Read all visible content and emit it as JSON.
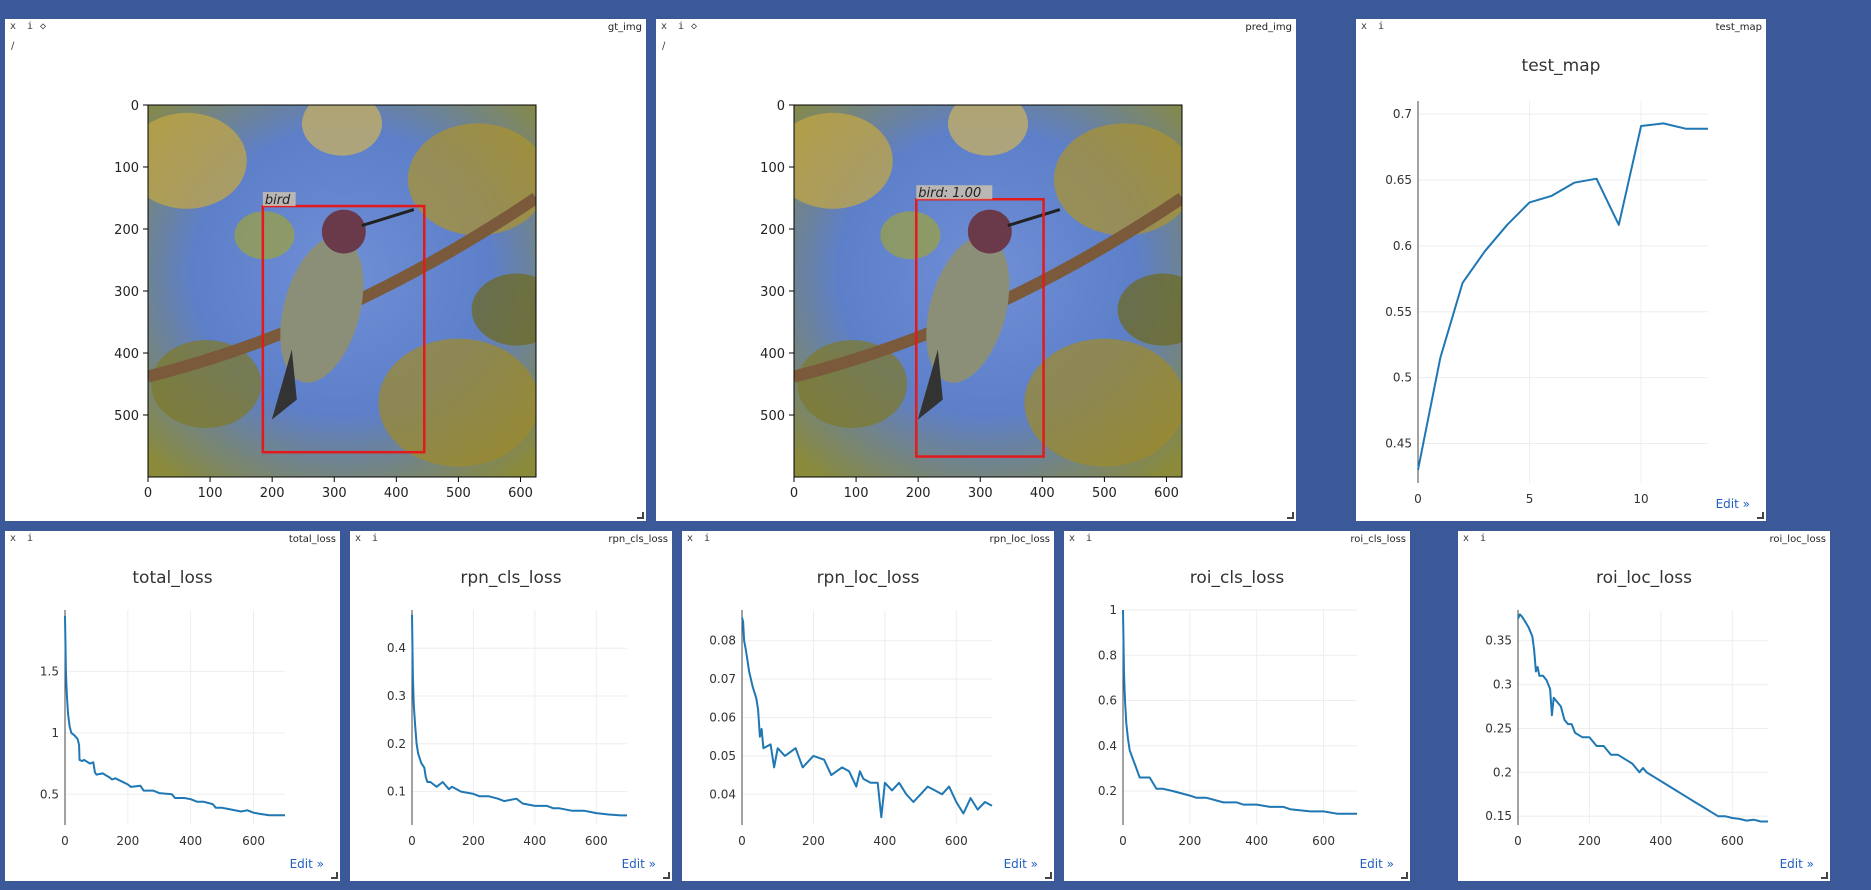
{
  "windows": {
    "gt_img": {
      "title": "gt_img",
      "close": "x",
      "info": "i",
      "extra": "◇",
      "pencil": "∕"
    },
    "pred_img": {
      "title": "pred_img",
      "close": "x",
      "info": "i",
      "extra": "◇",
      "pencil": "∕"
    },
    "test_map": {
      "title": "test_map",
      "close": "x",
      "info": "i",
      "edit": "Edit »"
    },
    "total_loss": {
      "title": "total_loss",
      "close": "x",
      "info": "i",
      "edit": "Edit »"
    },
    "rpn_cls_loss": {
      "title": "rpn_cls_loss",
      "close": "x",
      "info": "i",
      "edit": "Edit »"
    },
    "rpn_loc_loss": {
      "title": "rpn_loc_loss",
      "close": "x",
      "info": "i",
      "edit": "Edit »"
    },
    "roi_cls_loss": {
      "title": "roi_cls_loss",
      "close": "x",
      "info": "i",
      "edit": "Edit »"
    },
    "roi_loc_loss": {
      "title": "roi_loc_loss",
      "close": "x",
      "info": "i",
      "edit": "Edit »"
    }
  },
  "images": {
    "gt_img": {
      "xticks": [
        0,
        100,
        200,
        300,
        400,
        500,
        600
      ],
      "yticks": [
        0,
        100,
        200,
        300,
        400,
        500
      ],
      "xlim": [
        0,
        625
      ],
      "ylim": [
        0,
        600
      ],
      "box": {
        "x1": 185,
        "y1": 163,
        "x2": 445,
        "y2": 560,
        "label": "bird",
        "color": "#e31a1c"
      }
    },
    "pred_img": {
      "xticks": [
        0,
        100,
        200,
        300,
        400,
        500,
        600
      ],
      "yticks": [
        0,
        100,
        200,
        300,
        400,
        500
      ],
      "xlim": [
        0,
        625
      ],
      "ylim": [
        0,
        600
      ],
      "box": {
        "x1": 197,
        "y1": 152,
        "x2": 402,
        "y2": 567,
        "label": "bird: 1.00",
        "color": "#e31a1c"
      }
    }
  },
  "chart_data": [
    {
      "id": "test_map",
      "type": "line",
      "title": "test_map",
      "x": [
        0,
        1,
        2,
        3,
        4,
        5,
        6,
        7,
        8,
        9,
        10,
        11,
        12,
        13
      ],
      "values": [
        0.43,
        0.515,
        0.572,
        0.596,
        0.616,
        0.633,
        0.638,
        0.648,
        0.651,
        0.616,
        0.691,
        0.693,
        0.689,
        0.689
      ],
      "xlim": [
        0,
        13
      ],
      "ylim": [
        0.42,
        0.71
      ],
      "xticks": [
        0,
        5,
        10
      ],
      "yticks": [
        0.45,
        0.5,
        0.55,
        0.6,
        0.65,
        0.7
      ],
      "color": "#1f77b4"
    },
    {
      "id": "total_loss",
      "type": "line",
      "title": "total_loss",
      "x": [
        0,
        3,
        6,
        10,
        15,
        20,
        30,
        40,
        45,
        46,
        55,
        60,
        80,
        90,
        95,
        100,
        120,
        140,
        150,
        160,
        200,
        210,
        240,
        250,
        280,
        300,
        340,
        350,
        380,
        400,
        420,
        440,
        470,
        480,
        500,
        520,
        560,
        580,
        600,
        620,
        650,
        680,
        700
      ],
      "values": [
        1.95,
        1.5,
        1.3,
        1.15,
        1.05,
        1.0,
        0.98,
        0.95,
        0.9,
        0.78,
        0.77,
        0.78,
        0.75,
        0.76,
        0.68,
        0.66,
        0.67,
        0.64,
        0.62,
        0.63,
        0.58,
        0.56,
        0.57,
        0.53,
        0.53,
        0.51,
        0.5,
        0.47,
        0.47,
        0.46,
        0.44,
        0.44,
        0.42,
        0.39,
        0.39,
        0.38,
        0.36,
        0.37,
        0.35,
        0.34,
        0.33,
        0.33,
        0.33
      ],
      "xlim": [
        0,
        700
      ],
      "ylim": [
        0.25,
        2.0
      ],
      "xticks": [
        0,
        200,
        400,
        600
      ],
      "yticks": [
        0.5,
        1,
        1.5
      ],
      "color": "#1f77b4"
    },
    {
      "id": "rpn_cls_loss",
      "type": "line",
      "title": "rpn_cls_loss",
      "x": [
        0,
        3,
        6,
        10,
        15,
        20,
        30,
        40,
        45,
        50,
        60,
        80,
        100,
        120,
        130,
        160,
        200,
        220,
        250,
        280,
        300,
        340,
        360,
        400,
        440,
        460,
        480,
        520,
        560,
        600,
        640,
        680,
        700
      ],
      "values": [
        0.47,
        0.34,
        0.28,
        0.24,
        0.2,
        0.18,
        0.16,
        0.15,
        0.13,
        0.12,
        0.12,
        0.11,
        0.12,
        0.105,
        0.11,
        0.1,
        0.095,
        0.09,
        0.09,
        0.085,
        0.08,
        0.085,
        0.075,
        0.07,
        0.07,
        0.065,
        0.065,
        0.06,
        0.06,
        0.055,
        0.052,
        0.05,
        0.05
      ],
      "xlim": [
        0,
        700
      ],
      "ylim": [
        0.03,
        0.48
      ],
      "xticks": [
        0,
        200,
        400,
        600
      ],
      "yticks": [
        0.1,
        0.2,
        0.3,
        0.4
      ],
      "color": "#1f77b4"
    },
    {
      "id": "rpn_loc_loss",
      "type": "line",
      "title": "rpn_loc_loss",
      "x": [
        0,
        3,
        6,
        10,
        15,
        20,
        30,
        40,
        45,
        50,
        55,
        60,
        80,
        90,
        100,
        120,
        150,
        170,
        200,
        230,
        250,
        280,
        300,
        320,
        330,
        340,
        360,
        380,
        390,
        400,
        420,
        440,
        460,
        480,
        500,
        520,
        540,
        560,
        580,
        600,
        620,
        640,
        660,
        680,
        700
      ],
      "values": [
        0.086,
        0.085,
        0.08,
        0.078,
        0.075,
        0.072,
        0.068,
        0.065,
        0.062,
        0.055,
        0.057,
        0.052,
        0.053,
        0.047,
        0.052,
        0.05,
        0.052,
        0.047,
        0.05,
        0.049,
        0.045,
        0.047,
        0.046,
        0.042,
        0.046,
        0.044,
        0.043,
        0.043,
        0.034,
        0.043,
        0.041,
        0.043,
        0.04,
        0.038,
        0.04,
        0.042,
        0.041,
        0.04,
        0.042,
        0.038,
        0.035,
        0.039,
        0.036,
        0.038,
        0.037
      ],
      "xlim": [
        0,
        700
      ],
      "ylim": [
        0.032,
        0.088
      ],
      "xticks": [
        0,
        200,
        400,
        600
      ],
      "yticks": [
        0.04,
        0.05,
        0.06,
        0.07,
        0.08
      ],
      "color": "#1f77b4"
    },
    {
      "id": "roi_cls_loss",
      "type": "line",
      "title": "roi_cls_loss",
      "x": [
        0,
        3,
        6,
        10,
        15,
        20,
        30,
        40,
        45,
        50,
        60,
        80,
        100,
        120,
        150,
        200,
        220,
        250,
        300,
        340,
        360,
        400,
        440,
        480,
        500,
        560,
        600,
        640,
        680,
        700
      ],
      "values": [
        1.0,
        0.72,
        0.6,
        0.5,
        0.43,
        0.38,
        0.34,
        0.3,
        0.28,
        0.26,
        0.26,
        0.26,
        0.21,
        0.21,
        0.2,
        0.18,
        0.17,
        0.17,
        0.15,
        0.15,
        0.14,
        0.14,
        0.13,
        0.13,
        0.12,
        0.11,
        0.11,
        0.1,
        0.1,
        0.1
      ],
      "xlim": [
        0,
        700
      ],
      "ylim": [
        0.05,
        1.0
      ],
      "xticks": [
        0,
        200,
        400,
        600
      ],
      "yticks": [
        0.2,
        0.4,
        0.6,
        0.8,
        1
      ],
      "color": "#1f77b4"
    },
    {
      "id": "roi_loc_loss",
      "type": "line",
      "title": "roi_loc_loss",
      "x": [
        0,
        5,
        10,
        20,
        30,
        40,
        45,
        50,
        55,
        60,
        70,
        80,
        90,
        95,
        100,
        110,
        120,
        130,
        140,
        150,
        160,
        180,
        200,
        210,
        220,
        240,
        260,
        280,
        300,
        320,
        340,
        350,
        360,
        380,
        400,
        420,
        440,
        460,
        480,
        500,
        520,
        540,
        560,
        580,
        600,
        620,
        640,
        660,
        680,
        700
      ],
      "values": [
        0.375,
        0.38,
        0.378,
        0.372,
        0.365,
        0.355,
        0.34,
        0.315,
        0.32,
        0.31,
        0.31,
        0.305,
        0.295,
        0.265,
        0.285,
        0.28,
        0.275,
        0.26,
        0.255,
        0.255,
        0.245,
        0.24,
        0.24,
        0.235,
        0.23,
        0.23,
        0.22,
        0.22,
        0.215,
        0.21,
        0.2,
        0.205,
        0.2,
        0.195,
        0.19,
        0.185,
        0.18,
        0.175,
        0.17,
        0.165,
        0.16,
        0.155,
        0.15,
        0.15,
        0.148,
        0.147,
        0.145,
        0.146,
        0.144,
        0.144
      ],
      "xlim": [
        0,
        700
      ],
      "ylim": [
        0.14,
        0.385
      ],
      "xticks": [
        0,
        200,
        400,
        600
      ],
      "yticks": [
        0.15,
        0.2,
        0.25,
        0.3,
        0.35
      ],
      "color": "#1f77b4"
    }
  ]
}
